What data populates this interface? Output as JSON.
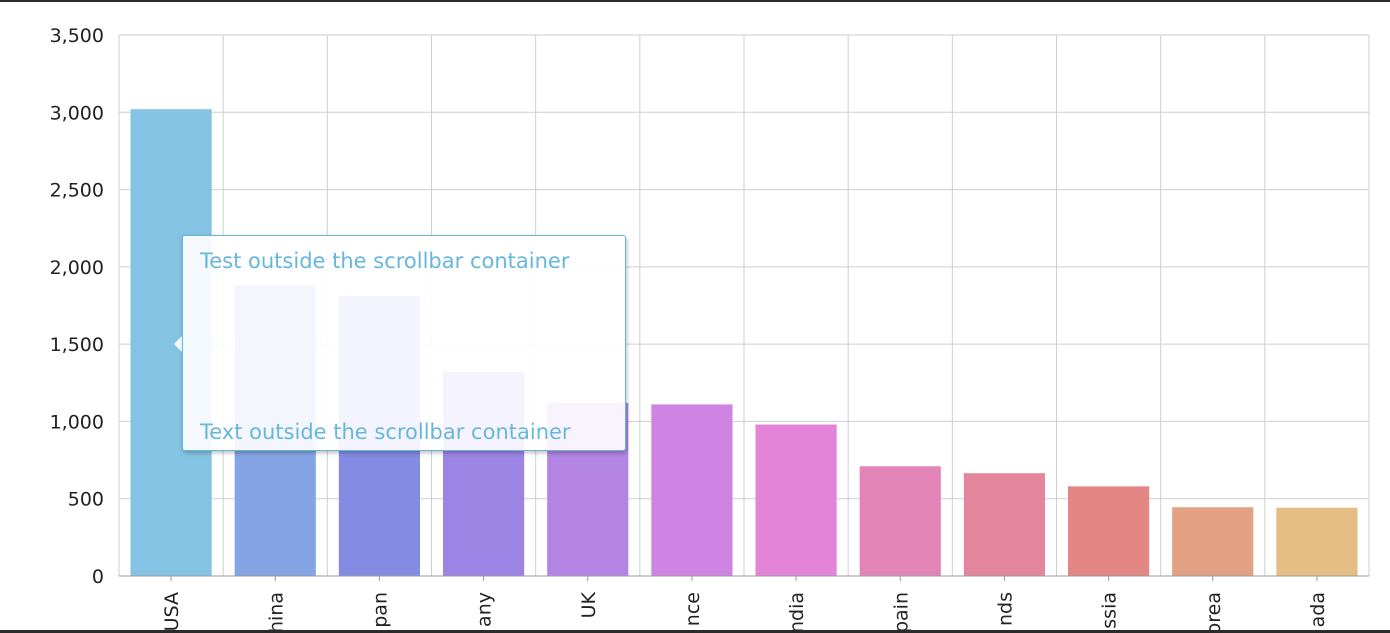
{
  "chart_data": {
    "type": "bar",
    "categories": [
      "USA",
      "China",
      "Japan",
      "Germany",
      "UK",
      "France",
      "India",
      "Spain",
      "Netherlands",
      "Russia",
      "South Korea",
      "Canada"
    ],
    "visible_tick_labels": [
      "USA",
      "hina",
      "pan",
      "any",
      "UK",
      "nce",
      "ndia",
      "pain",
      "nds",
      "ssia",
      "orea",
      "ada"
    ],
    "values": [
      3020,
      1880,
      1810,
      1320,
      1120,
      1110,
      980,
      710,
      665,
      580,
      445,
      442
    ],
    "bar_colors": [
      "#84c3e3",
      "#84a4e3",
      "#848be3",
      "#9b84e3",
      "#b384e3",
      "#cf84e3",
      "#e384d9",
      "#e384b8",
      "#e3859c",
      "#e38784",
      "#e3a184",
      "#e3bd84"
    ],
    "yticks": [
      0,
      500,
      1000,
      1500,
      2000,
      2500,
      3000,
      3500
    ],
    "ytick_labels": [
      "0",
      "500",
      "1,000",
      "1,500",
      "2,000",
      "2,500",
      "3,000",
      "3,500"
    ],
    "ylim": [
      0,
      3500
    ],
    "grid": true
  },
  "tooltip": {
    "top_text": "Test outside the scrollbar container",
    "bottom_text": "Text outside the scrollbar container",
    "accent_color": "#67b7dc"
  }
}
